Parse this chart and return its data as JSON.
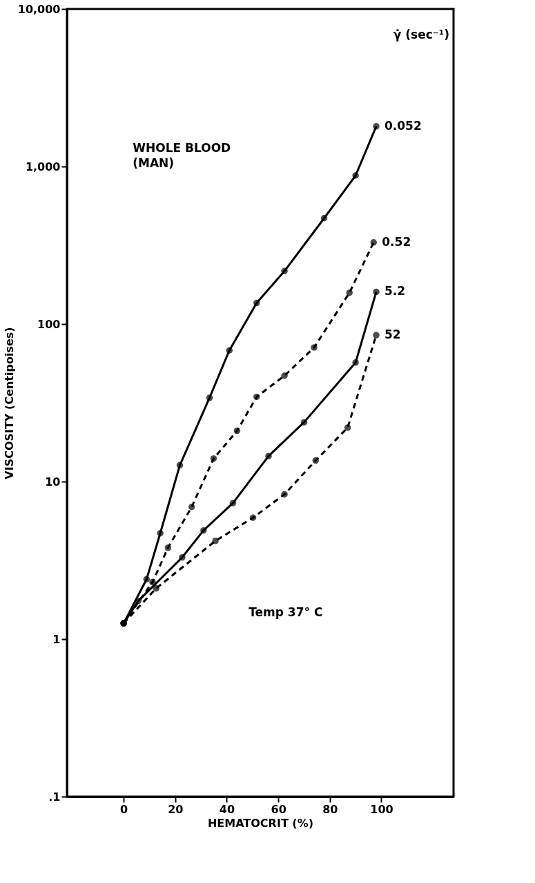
{
  "chart_data": {
    "type": "line",
    "xlabel": "HEMATOCRIT (%)",
    "ylabel": "VISCOSITY (Centipoises)",
    "legend_title": "γ̇ (sec⁻¹)",
    "annotations": [
      "WHOLE BLOOD\n(MAN)",
      "Temp 37° C"
    ],
    "log": "y",
    "xlim": [
      -22,
      128
    ],
    "ylim": [
      0.1,
      10000
    ],
    "xticks": [
      0,
      20,
      40,
      60,
      80,
      100
    ],
    "yticks": [
      {
        "value": 0.1,
        "label": ".1"
      },
      1,
      10,
      100,
      {
        "value": 1000,
        "label": "1,000"
      },
      {
        "value": 10000,
        "label": "10,000"
      }
    ],
    "grid": false,
    "marker": "circle",
    "series": [
      {
        "name": "0.052",
        "color": "#000000",
        "line_style": "solid",
        "x": [
          0,
          8.9,
          14.2,
          21.8,
          33.3,
          41,
          51.6,
          62.4,
          77.8,
          90,
          98
        ],
        "values": [
          1.26,
          2.4,
          4.7,
          12.7,
          34,
          68,
          136,
          217,
          470,
          877,
          1800
        ]
      },
      {
        "name": "0.52",
        "color": "#000000",
        "line_style": "dashed",
        "x": [
          0,
          11.2,
          17.2,
          26.4,
          34.9,
          44,
          51.6,
          62.4,
          73.9,
          87.6,
          97
        ],
        "values": [
          1.26,
          2.3,
          3.8,
          6.9,
          14,
          21,
          34.5,
          47,
          71,
          158,
          330
        ]
      },
      {
        "name": "5.2",
        "color": "#000000",
        "line_style": "solid",
        "x": [
          0,
          5.7,
          22.7,
          31,
          42.4,
          56.2,
          70,
          90,
          98
        ],
        "values": [
          1.26,
          1.75,
          3.3,
          4.9,
          7.3,
          14.5,
          23.8,
          57,
          160
        ]
      },
      {
        "name": "52",
        "color": "#000000",
        "line_style": "dashed",
        "x": [
          0,
          12.6,
          35.6,
          50.2,
          62.4,
          74.5,
          86.9,
          98
        ],
        "values": [
          1.26,
          2.1,
          4.2,
          5.9,
          8.3,
          13.6,
          22,
          85
        ]
      }
    ]
  }
}
